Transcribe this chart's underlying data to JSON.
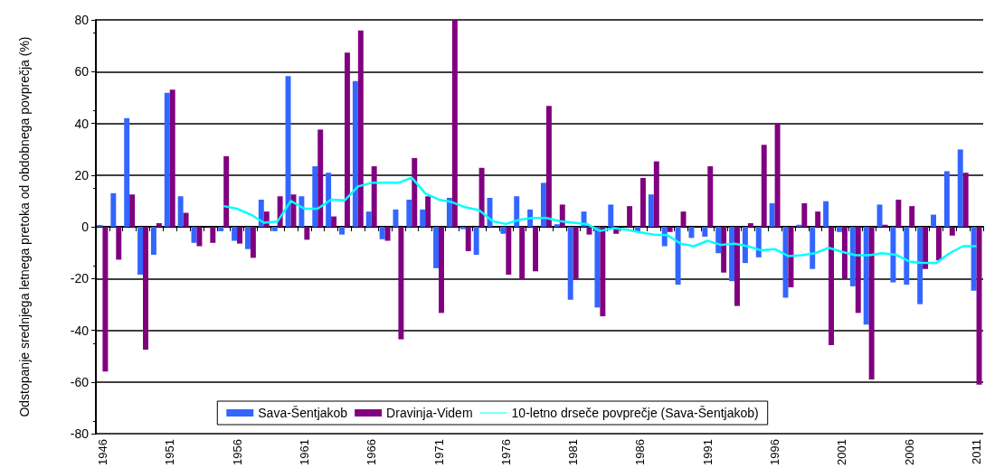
{
  "chart_data": {
    "type": "bar",
    "ylabel": "Odstopanje srednjega letnega pretoka od obdobnega povprečja (%)",
    "categories": [
      "1946",
      null,
      null,
      null,
      null,
      "1951",
      null,
      null,
      null,
      null,
      "1956",
      null,
      null,
      null,
      null,
      "1961",
      null,
      null,
      null,
      null,
      "1966",
      null,
      null,
      null,
      null,
      "1971",
      null,
      null,
      null,
      null,
      "1976",
      null,
      null,
      null,
      null,
      "1981",
      null,
      null,
      null,
      null,
      "1986",
      null,
      null,
      null,
      null,
      "1991",
      null,
      null,
      null,
      null,
      "1996",
      null,
      null,
      null,
      null,
      "2001",
      null,
      null,
      null,
      null,
      "2006",
      null,
      null,
      null,
      null,
      "2011"
    ],
    "series": [
      {
        "name": "Sava-Šentjakob",
        "color": "#3366ff",
        "values": [
          0.7,
          13,
          42,
          -18.5,
          -10.8,
          51.8,
          11.8,
          -6.2,
          0,
          -1.7,
          -5.4,
          -8.6,
          10.5,
          -1.7,
          58.3,
          11.8,
          23.4,
          20.9,
          -3,
          56.3,
          5.9,
          -4.8,
          6.7,
          10.5,
          6.7,
          -16,
          11.2,
          -0.9,
          -10.8,
          11.2,
          -2.7,
          11.8,
          6.7,
          17,
          1,
          -28.2,
          5.9,
          -31.2,
          8.6,
          0,
          -2,
          12.5,
          -7.5,
          -22.4,
          -4.3,
          -3.8,
          -10.2,
          -21,
          -14,
          -11.8,
          9.1,
          -27.4,
          0.8,
          -16.3,
          9.9,
          -2,
          -23,
          -37.8,
          8.6,
          -21.5,
          -22.4,
          -29.9,
          4.7,
          21.5,
          29.9,
          -24.7
        ]
      },
      {
        "name": "Dravinja-Videm",
        "color": "#800080",
        "values": [
          -56,
          -12.7,
          12.5,
          -47.5,
          1.4,
          53,
          5.4,
          -7.5,
          -6.2,
          27.3,
          -6.5,
          -12,
          5.9,
          11.8,
          12.5,
          -5,
          37.6,
          4,
          67.3,
          75.9,
          23.4,
          -5.4,
          -43.5,
          26.6,
          11.8,
          -33.3,
          80,
          -9.4,
          22.8,
          0,
          -18.5,
          -20.2,
          -17.2,
          46.7,
          8.6,
          -20,
          -3,
          -34.6,
          -2.7,
          8,
          18.9,
          25.3,
          -2,
          5.9,
          0,
          23.4,
          -17.7,
          -30.6,
          1.4,
          31.7,
          40,
          -23.4,
          9.1,
          5.9,
          -45.7,
          -20,
          -33.3,
          -59,
          0.8,
          10.5,
          8,
          -16.3,
          -12.9,
          -3.4,
          20.9,
          -61
        ]
      },
      {
        "name": "10-letno drseče povprečje (Sava-Šentjakob)",
        "type": "line",
        "color": "#00ffff",
        "values": [
          null,
          null,
          null,
          null,
          null,
          null,
          null,
          null,
          null,
          8,
          7,
          4.8,
          1.6,
          2,
          10,
          7,
          7,
          10.5,
          10.2,
          15.6,
          17,
          17,
          17,
          19,
          12.9,
          10.5,
          9.5,
          7.5,
          6.5,
          2.2,
          1.1,
          2.7,
          3.4,
          3.4,
          2.2,
          1.6,
          1.1,
          -1.6,
          -0.5,
          -1.1,
          -2.2,
          -3,
          -3.2,
          -6.5,
          -7.5,
          -5.4,
          -7,
          -6.5,
          -7.5,
          -9.1,
          -8.6,
          -11.3,
          -11,
          -10.2,
          -8.1,
          -9.7,
          -11,
          -11,
          -10.2,
          -10.8,
          -13.4,
          -14,
          -14,
          -10.2,
          -7.5,
          -7.5
        ]
      }
    ],
    "ylim": [
      -80,
      80
    ],
    "yticks": [
      -80,
      -60,
      -40,
      -20,
      0,
      20,
      40,
      60,
      80
    ],
    "grid": "y",
    "legend": "bottom",
    "marker": "none",
    "line_style": "solid"
  }
}
